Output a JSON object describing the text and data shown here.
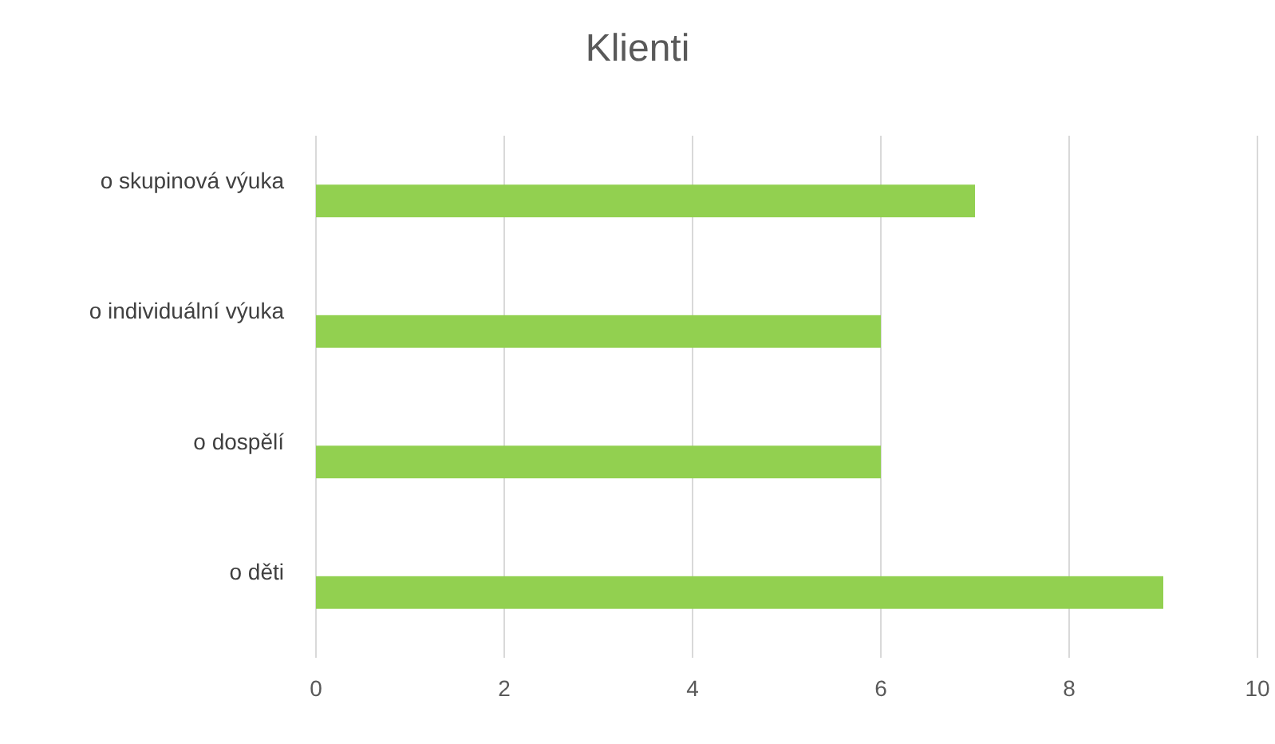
{
  "chart_data": {
    "type": "bar",
    "title": "Klienti",
    "orientation": "horizontal",
    "categories": [
      "o skupinová výuka",
      "o individuální výuka",
      "o dospělí",
      "o děti"
    ],
    "values": [
      7,
      6,
      6,
      9
    ],
    "color": "#92d050",
    "xlim": [
      0,
      10
    ],
    "xticks": [
      0,
      2,
      4,
      6,
      8,
      10
    ],
    "grid": "x"
  }
}
